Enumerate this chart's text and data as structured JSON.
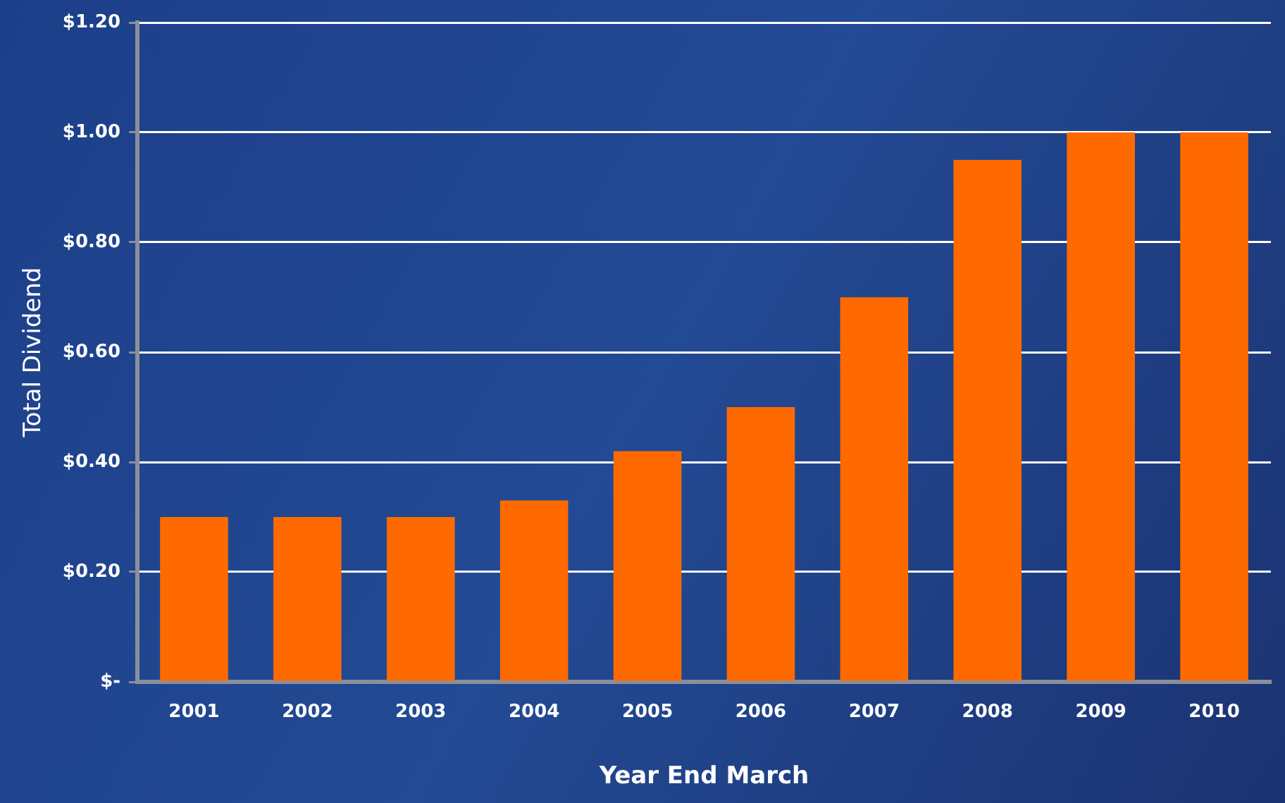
{
  "chart_data": {
    "type": "bar",
    "xlabel": "Year End March",
    "ylabel": "Total Dividend",
    "categories": [
      "2001",
      "2002",
      "2003",
      "2004",
      "2005",
      "2006",
      "2007",
      "2008",
      "2009",
      "2010"
    ],
    "values": [
      0.3,
      0.3,
      0.3,
      0.33,
      0.42,
      0.5,
      0.7,
      0.95,
      1.0,
      1.0
    ],
    "color": "#ff6a00",
    "ylim": [
      0,
      1.2
    ],
    "yticks": [
      {
        "value": 0,
        "label": "$-"
      },
      {
        "value": 0.2,
        "label": "$0.20"
      },
      {
        "value": 0.4,
        "label": "$0.40"
      },
      {
        "value": 0.6,
        "label": "$0.60"
      },
      {
        "value": 0.8,
        "label": "$0.80"
      },
      {
        "value": 1.0,
        "label": "$1.00"
      },
      {
        "value": 1.2,
        "label": "$1.20"
      }
    ],
    "grid": "y",
    "legend": false
  }
}
